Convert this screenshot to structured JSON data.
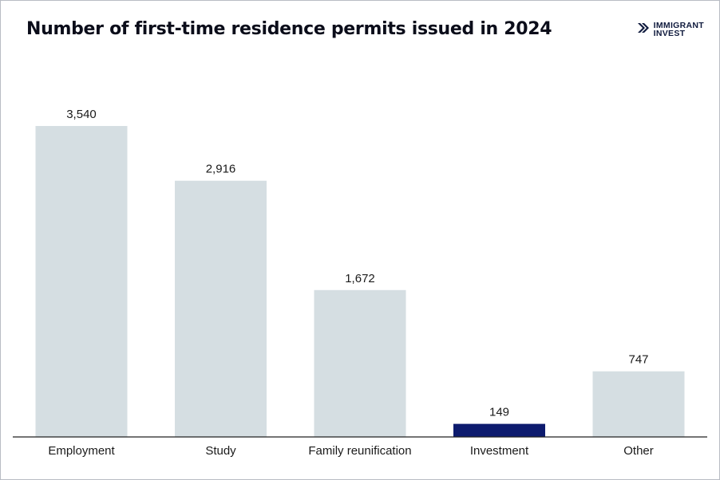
{
  "title": "Number of first-time residence permits issued in 2024",
  "logo": {
    "line1": "IMMIGRANT",
    "line2": "INVEST",
    "icon": "brand-chevrons-icon",
    "color": "#0f1a3d"
  },
  "colors": {
    "default_bar": "#d5dee2",
    "highlight_bar": "#0d1b6e",
    "axis": "#222222"
  },
  "chart_data": {
    "type": "bar",
    "title": "Number of first-time residence permits issued in 2024",
    "xlabel": "",
    "ylabel": "",
    "categories": [
      "Employment",
      "Study",
      "Family reunification",
      "Investment",
      "Other"
    ],
    "values": [
      3540,
      2916,
      1672,
      149,
      747
    ],
    "value_labels": [
      "3,540",
      "2,916",
      "1,672",
      "149",
      "747"
    ],
    "highlighted": "Investment",
    "ylim": [
      0,
      3540
    ],
    "grid": false,
    "legend": "none"
  }
}
